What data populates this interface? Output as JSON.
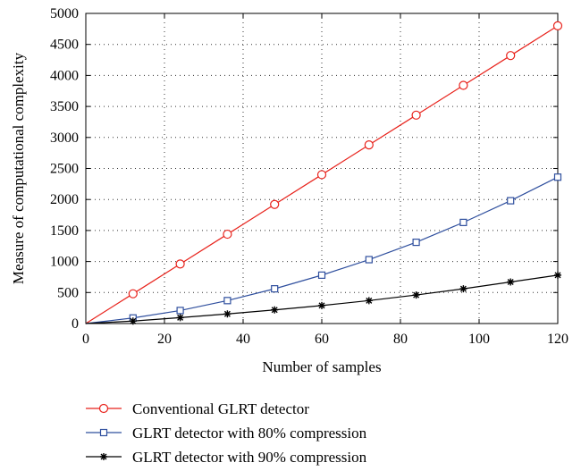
{
  "chart_data": {
    "type": "line",
    "xlabel": "Number of samples",
    "ylabel": "Measure of computational complexity",
    "xlim": [
      0,
      120
    ],
    "ylim": [
      0,
      5000
    ],
    "xticks": [
      0,
      20,
      40,
      60,
      80,
      100,
      120
    ],
    "yticks": [
      0,
      500,
      1000,
      1500,
      2000,
      2500,
      3000,
      3500,
      4000,
      4500,
      5000
    ],
    "grid": true,
    "legend_position": "bottom",
    "x": [
      0,
      12,
      24,
      36,
      48,
      60,
      72,
      84,
      96,
      108,
      120
    ],
    "series": [
      {
        "name": "Conventional GLRT detector",
        "color": "#e8221b",
        "marker": "circle",
        "values": [
          0,
          480,
          960,
          1440,
          1920,
          2400,
          2880,
          3360,
          3840,
          4320,
          4800
        ]
      },
      {
        "name": "GLRT detector with 80% compression",
        "color": "#2f4f9e",
        "marker": "square",
        "values": [
          0,
          90,
          210,
          370,
          560,
          780,
          1030,
          1310,
          1630,
          1980,
          2360
        ]
      },
      {
        "name": "GLRT detector with 90% compression",
        "color": "#000000",
        "marker": "star",
        "values": [
          0,
          40,
          95,
          155,
          220,
          290,
          370,
          460,
          560,
          670,
          780
        ]
      }
    ]
  }
}
